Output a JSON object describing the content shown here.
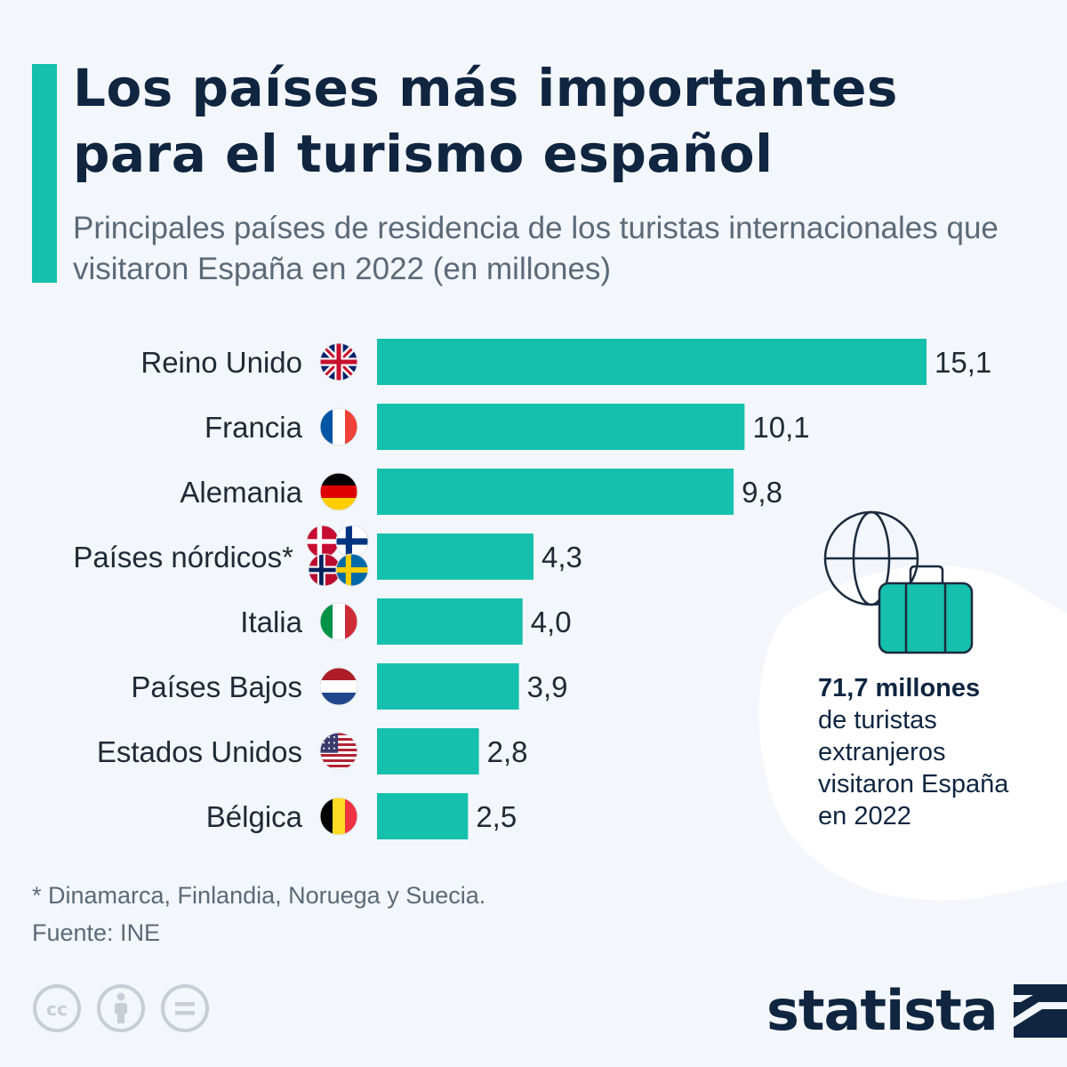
{
  "header": {
    "title": "Los países más importantes para el turismo español",
    "subtitle": "Principales países de residencia de los turistas internacionales que visitaron España en 2022 (en millones)"
  },
  "chart_data": {
    "type": "bar",
    "orientation": "horizontal",
    "categories": [
      "Reino Unido",
      "Francia",
      "Alemania",
      "Países nórdicos*",
      "Italia",
      "Países Bajos",
      "Estados Unidos",
      "Bélgica"
    ],
    "values": [
      15.1,
      10.1,
      9.8,
      4.3,
      4.0,
      3.9,
      2.8,
      2.5
    ],
    "value_labels": [
      "15,1",
      "10,1",
      "9,8",
      "4,3",
      "4,0",
      "3,9",
      "2,8",
      "2,5"
    ],
    "flags": [
      "uk-flag-icon",
      "france-flag-icon",
      "germany-flag-icon",
      "nordic-flags-icon",
      "italy-flag-icon",
      "netherlands-flag-icon",
      "usa-flag-icon",
      "belgium-flag-icon"
    ],
    "bar_color": "#15c0ad",
    "xlim": [
      0,
      15.1
    ],
    "grid": false
  },
  "info": {
    "highlight": "71,7 millones",
    "lines": [
      "de turistas",
      "extranjeros",
      "visitaron España",
      "en 2022"
    ],
    "icons": [
      "globe-icon",
      "suitcase-icon"
    ]
  },
  "footer": {
    "footnote": "* Dinamarca, Finlandia, Noruega y Suecia.",
    "source": "Fuente: INE",
    "license_icons": [
      "cc-icon",
      "attribution-icon",
      "no-derivatives-icon"
    ],
    "brand": "statista"
  },
  "colors": {
    "accent": "#15c0ad",
    "title": "#0f2540",
    "muted": "#5b6a78",
    "background": "#f3f6fa"
  }
}
